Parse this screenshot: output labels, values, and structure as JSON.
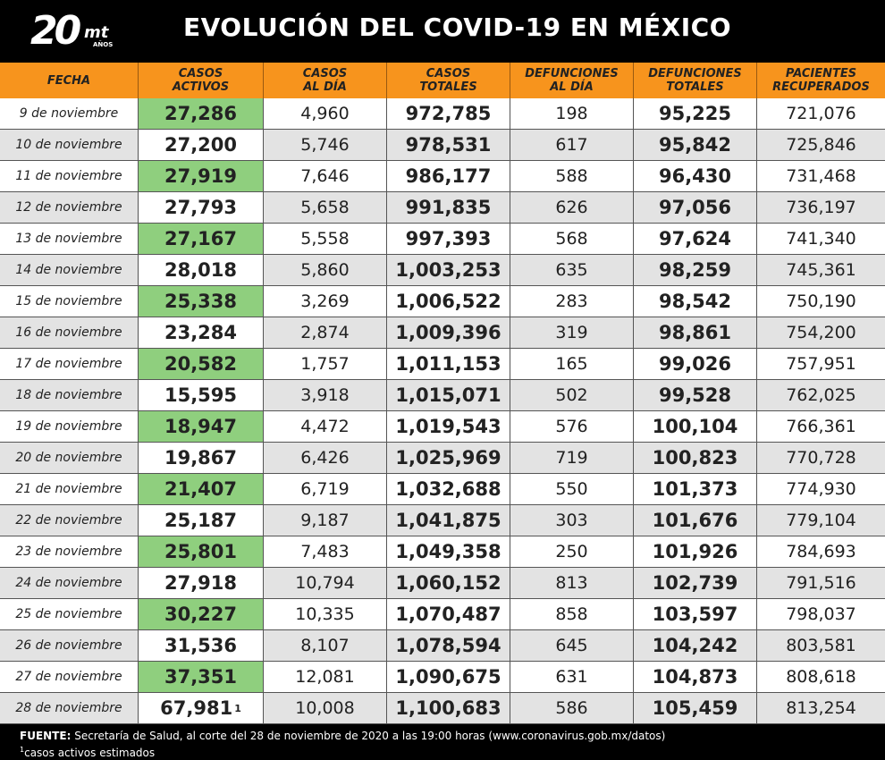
{
  "header": {
    "logo_number": "20",
    "logo_brand": "mt",
    "logo_sub": "AÑOS",
    "title": "EVOLUCIÓN DEL COVID-19 EN MÉXICO"
  },
  "table": {
    "columns": [
      [
        "FECHA"
      ],
      [
        "CASOS",
        "ACTIVOS"
      ],
      [
        "CASOS",
        "AL DÍA"
      ],
      [
        "CASOS",
        "TOTALES"
      ],
      [
        "DEFUNCIONES",
        "AL DÍA"
      ],
      [
        "DEFUNCIONES",
        "TOTALES"
      ],
      [
        "PACIENTES",
        "RECUPERADOS"
      ]
    ],
    "rows": [
      [
        "9 de noviembre",
        "27,286",
        "4,960",
        "972,785",
        "198",
        "95,225",
        "721,076"
      ],
      [
        "10 de noviembre",
        "27,200",
        "5,746",
        "978,531",
        "617",
        "95,842",
        "725,846"
      ],
      [
        "11 de noviembre",
        "27,919",
        "7,646",
        "986,177",
        "588",
        "96,430",
        "731,468"
      ],
      [
        "12 de noviembre",
        "27,793",
        "5,658",
        "991,835",
        "626",
        "97,056",
        "736,197"
      ],
      [
        "13 de noviembre",
        "27,167",
        "5,558",
        "997,393",
        "568",
        "97,624",
        "741,340"
      ],
      [
        "14 de noviembre",
        "28,018",
        "5,860",
        "1,003,253",
        "635",
        "98,259",
        "745,361"
      ],
      [
        "15 de noviembre",
        "25,338",
        "3,269",
        "1,006,522",
        "283",
        "98,542",
        "750,190"
      ],
      [
        "16 de noviembre",
        "23,284",
        "2,874",
        "1,009,396",
        "319",
        "98,861",
        "754,200"
      ],
      [
        "17 de noviembre",
        "20,582",
        "1,757",
        "1,011,153",
        "165",
        "99,026",
        "757,951"
      ],
      [
        "18 de noviembre",
        "15,595",
        "3,918",
        "1,015,071",
        "502",
        "99,528",
        "762,025"
      ],
      [
        "19 de noviembre",
        "18,947",
        "4,472",
        "1,019,543",
        "576",
        "100,104",
        "766,361"
      ],
      [
        "20 de noviembre",
        "19,867",
        "6,426",
        "1,025,969",
        "719",
        "100,823",
        "770,728"
      ],
      [
        "21 de noviembre",
        "21,407",
        "6,719",
        "1,032,688",
        "550",
        "101,373",
        "774,930"
      ],
      [
        "22 de noviembre",
        "25,187",
        "9,187",
        "1,041,875",
        "303",
        "101,676",
        "779,104"
      ],
      [
        "23 de noviembre",
        "25,801",
        "7,483",
        "1,049,358",
        "250",
        "101,926",
        "784,693"
      ],
      [
        "24 de noviembre",
        "27,918",
        "10,794",
        "1,060,152",
        "813",
        "102,739",
        "791,516"
      ],
      [
        "25 de noviembre",
        "30,227",
        "10,335",
        "1,070,487",
        "858",
        "103,597",
        "798,037"
      ],
      [
        "26 de noviembre",
        "31,536",
        "8,107",
        "1,078,594",
        "645",
        "104,242",
        "803,581"
      ],
      [
        "27 de noviembre",
        "37,351",
        "12,081",
        "1,090,675",
        "631",
        "104,873",
        "808,618"
      ],
      [
        "28 de noviembre",
        "67,981",
        "10,008",
        "1,100,683",
        "586",
        "105,459",
        "813,254"
      ]
    ],
    "last_row_footnote_mark": "1"
  },
  "footer": {
    "source_label": "FUENTE:",
    "source_text": "Secretaría de Salud, al corte del 28 de noviembre de 2020 a las 19:00 horas (www.coronavirus.gob.mx/datos)",
    "note_mark": "1",
    "note_text": "casos activos estimados"
  },
  "colors": {
    "header_bg": "#f7941d",
    "active_green": "#8fcf7e",
    "row_gray": "#e3e3e3"
  }
}
